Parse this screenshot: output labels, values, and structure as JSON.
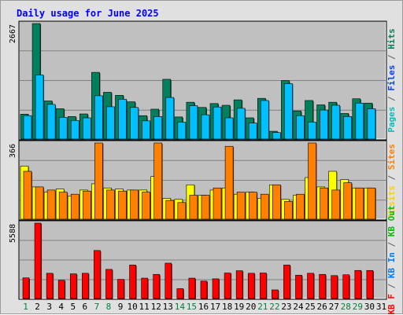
{
  "chart_data": [
    {
      "type": "bar",
      "title": "Daily usage for June 2025",
      "ymax_label": "2667",
      "categories": [
        "1",
        "2",
        "3",
        "4",
        "5",
        "6",
        "7",
        "8",
        "9",
        "10",
        "11",
        "12",
        "13",
        "14",
        "15",
        "16",
        "17",
        "18",
        "19",
        "20",
        "21",
        "22",
        "23",
        "24",
        "25",
        "26",
        "27",
        "28",
        "29",
        "30",
        "31"
      ],
      "weekend_days": [
        "1",
        "7",
        "8",
        "14",
        "15",
        "21",
        "22",
        "28",
        "29"
      ],
      "series": [
        {
          "name": "Hits",
          "color": "#00805c",
          "values": [
            575,
            2667,
            880,
            700,
            520,
            580,
            1540,
            1080,
            1010,
            860,
            540,
            690,
            1380,
            510,
            850,
            730,
            820,
            780,
            905,
            490,
            940,
            180,
            1350,
            650,
            890,
            790,
            850,
            590,
            930,
            830,
            0
          ]
        },
        {
          "name": "Files",
          "color": "#00c0ff",
          "values": [
            540,
            1480,
            800,
            500,
            430,
            490,
            1000,
            745,
            920,
            730,
            420,
            520,
            960,
            390,
            770,
            560,
            740,
            490,
            710,
            370,
            890,
            150,
            1280,
            540,
            390,
            670,
            780,
            520,
            830,
            700,
            0
          ]
        }
      ]
    },
    {
      "type": "bar",
      "ymax_label": "366",
      "categories": [
        "1",
        "2",
        "3",
        "4",
        "5",
        "6",
        "7",
        "8",
        "9",
        "10",
        "11",
        "12",
        "13",
        "14",
        "15",
        "16",
        "17",
        "18",
        "19",
        "20",
        "21",
        "22",
        "23",
        "24",
        "25",
        "26",
        "27",
        "28",
        "29",
        "30",
        "31"
      ],
      "series": [
        {
          "name": "Visits",
          "color": "#ffff00",
          "values": [
            255,
            155,
            130,
            145,
            110,
            140,
            170,
            150,
            145,
            140,
            140,
            205,
            100,
            95,
            165,
            115,
            140,
            150,
            120,
            130,
            100,
            165,
            95,
            115,
            200,
            155,
            230,
            190,
            150,
            150,
            0
          ]
        },
        {
          "name": "Sites",
          "color": "#ff8000",
          "values": [
            230,
            155,
            140,
            130,
            120,
            135,
            366,
            140,
            135,
            140,
            130,
            366,
            90,
            80,
            115,
            115,
            150,
            350,
            130,
            130,
            120,
            165,
            85,
            120,
            366,
            150,
            140,
            175,
            150,
            150,
            0
          ]
        }
      ]
    },
    {
      "type": "bar",
      "ymax_label": "5588",
      "categories": [
        "1",
        "2",
        "3",
        "4",
        "5",
        "6",
        "7",
        "8",
        "9",
        "10",
        "11",
        "12",
        "13",
        "14",
        "15",
        "16",
        "17",
        "18",
        "19",
        "20",
        "21",
        "22",
        "23",
        "24",
        "25",
        "26",
        "27",
        "28",
        "29",
        "30",
        "31"
      ],
      "series": [
        {
          "name": "KBytes",
          "color": "#ff0000",
          "values": [
            1530,
            5588,
            1870,
            1350,
            1830,
            1870,
            3560,
            2160,
            1420,
            2480,
            1510,
            1790,
            2620,
            730,
            1510,
            1290,
            1460,
            1890,
            2060,
            1870,
            1890,
            640,
            2480,
            1730,
            1870,
            1790,
            1700,
            1760,
            2080,
            2080,
            0
          ]
        }
      ]
    }
  ],
  "right_labels": [
    {
      "parts": [
        {
          "text": "Pages",
          "color": "#00c0c0"
        },
        {
          "text": " / ",
          "color": "#606060"
        },
        {
          "text": "Files",
          "color": "#0040ff"
        },
        {
          "text": " / ",
          "color": "#606060"
        },
        {
          "text": "Hits",
          "color": "#00805c"
        }
      ]
    },
    {
      "parts": [
        {
          "text": "Visits",
          "color": "#ffd000"
        },
        {
          "text": " / ",
          "color": "#606060"
        },
        {
          "text": "Sites",
          "color": "#ff8000"
        }
      ]
    },
    {
      "parts": [
        {
          "text": "KB F",
          "color": "#ff0000"
        },
        {
          "text": " / ",
          "color": "#606060"
        },
        {
          "text": "KB In",
          "color": "#0080ff"
        },
        {
          "text": " / ",
          "color": "#606060"
        },
        {
          "text": "KB Out",
          "color": "#00c000"
        }
      ]
    }
  ],
  "colors": {
    "panel": "#c0c0c0",
    "weekday_label": "#000000",
    "weekend_label": "#008040",
    "title": "#0000ff"
  }
}
